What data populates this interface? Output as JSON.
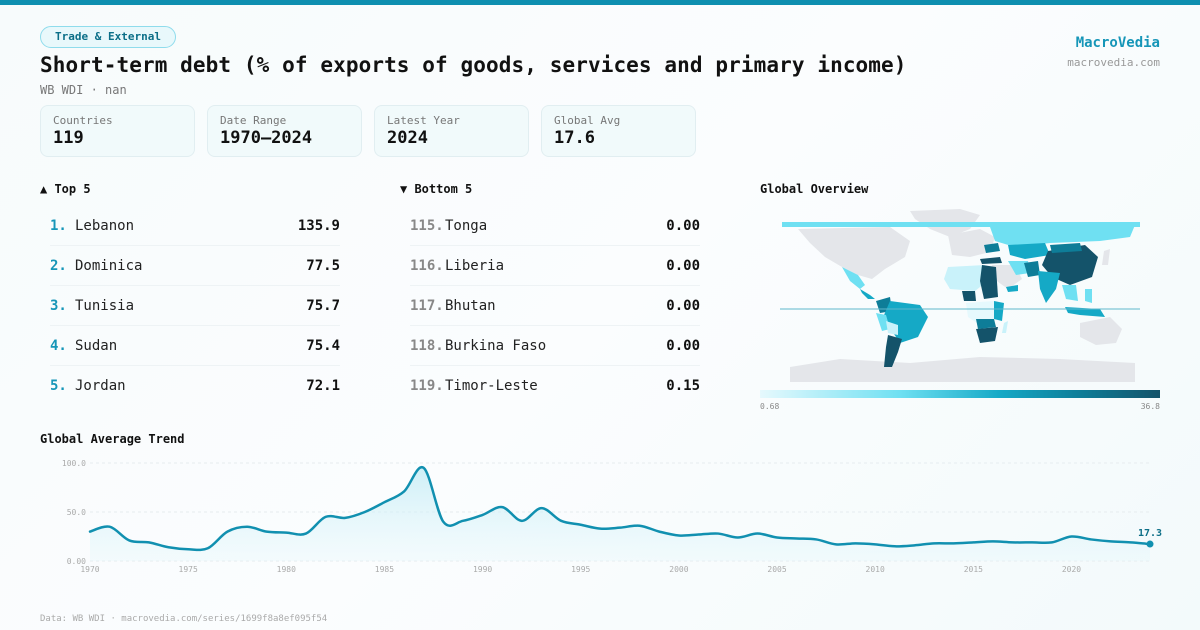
{
  "header": {
    "category_tag": "Trade & External",
    "title": "Short-term debt (% of exports of goods, services and primary income)",
    "subtitle": "WB WDI · nan",
    "brand_name": "MacroVedia",
    "brand_url": "macrovedia.com"
  },
  "stats": [
    {
      "label": "Countries",
      "value": "119"
    },
    {
      "label": "Date Range",
      "value": "1970–2024"
    },
    {
      "label": "Latest Year",
      "value": "2024"
    },
    {
      "label": "Global Avg",
      "value": "17.6"
    }
  ],
  "top5": {
    "heading": "▲ Top 5",
    "rows": [
      {
        "rank": "1.",
        "country": "Lebanon",
        "value": "135.9"
      },
      {
        "rank": "2.",
        "country": "Dominica",
        "value": "77.5"
      },
      {
        "rank": "3.",
        "country": "Tunisia",
        "value": "75.7"
      },
      {
        "rank": "4.",
        "country": "Sudan",
        "value": "75.4"
      },
      {
        "rank": "5.",
        "country": "Jordan",
        "value": "72.1"
      }
    ]
  },
  "bottom5": {
    "heading": "▼ Bottom 5",
    "rows": [
      {
        "rank": "115.",
        "country": "Tonga",
        "value": "0.00"
      },
      {
        "rank": "116.",
        "country": "Liberia",
        "value": "0.00"
      },
      {
        "rank": "117.",
        "country": "Bhutan",
        "value": "0.00"
      },
      {
        "rank": "118.",
        "country": "Burkina Faso",
        "value": "0.00"
      },
      {
        "rank": "119.",
        "country": "Timor-Leste",
        "value": "0.15"
      }
    ]
  },
  "map": {
    "heading": "Global Overview",
    "legend_min": "0.68",
    "legend_max": "36.8",
    "colors": {
      "no_data": "#e4e6ea",
      "low": "#e6f9fd",
      "mid_low": "#6fe0f2",
      "mid": "#15a9c6",
      "mid_high": "#0e7d98",
      "high": "#14536a"
    }
  },
  "chart_data": {
    "type": "area",
    "title": "Global Average Trend",
    "xlabel": "",
    "ylabel": "",
    "x": [
      1970,
      1971,
      1972,
      1973,
      1974,
      1975,
      1976,
      1977,
      1978,
      1979,
      1980,
      1981,
      1982,
      1983,
      1984,
      1985,
      1986,
      1987,
      1988,
      1989,
      1990,
      1991,
      1992,
      1993,
      1994,
      1995,
      1996,
      1997,
      1998,
      1999,
      2000,
      2001,
      2002,
      2003,
      2004,
      2005,
      2006,
      2007,
      2008,
      2009,
      2010,
      2011,
      2012,
      2013,
      2014,
      2015,
      2016,
      2017,
      2018,
      2019,
      2020,
      2021,
      2022,
      2023,
      2024
    ],
    "series": [
      {
        "name": "Global Average",
        "values": [
          30,
          35,
          21,
          19,
          14,
          12,
          13,
          30,
          35,
          30,
          29,
          28,
          45,
          44,
          50,
          60,
          71,
          95,
          40,
          41,
          47,
          55,
          41,
          54,
          41,
          37,
          33,
          34,
          36,
          30,
          26,
          27,
          28,
          24,
          28,
          24,
          23,
          22,
          17,
          18,
          17,
          15,
          16,
          18,
          18,
          19,
          20,
          19,
          19,
          19,
          25,
          22,
          20,
          19,
          17.3
        ]
      }
    ],
    "ylim": [
      0,
      100
    ],
    "yticks": [
      "0.00",
      "50.0",
      "100.0"
    ],
    "ytick_values": [
      0,
      50,
      100
    ],
    "xticks": [
      "1970",
      "1975",
      "1980",
      "1985",
      "1990",
      "1995",
      "2000",
      "2005",
      "2010",
      "2015",
      "2020"
    ],
    "xtick_values": [
      1970,
      1975,
      1980,
      1985,
      1990,
      1995,
      2000,
      2005,
      2010,
      2015,
      2020
    ],
    "last_value_label": "17.3",
    "grid": true,
    "line_color": "#1190b0"
  },
  "footer": {
    "source": "Data: WB WDI · macrovedia.com/series/1699f8a8ef095f54"
  }
}
